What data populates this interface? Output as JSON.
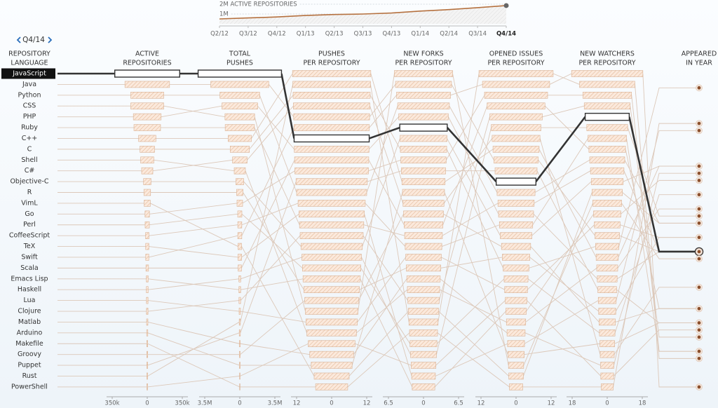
{
  "nav": {
    "quarter": "Q4/14"
  },
  "chart_data": [
    {
      "type": "line",
      "x": [
        "Q2/12",
        "Q3/12",
        "Q4/12",
        "Q1/13",
        "Q2/13",
        "Q3/13",
        "Q4/13",
        "Q1/14",
        "Q2/14",
        "Q3/14",
        "Q4/14"
      ],
      "values": [
        500000,
        600000,
        700000,
        850000,
        950000,
        1000000,
        1100000,
        1300000,
        1450000,
        1650000,
        1860000
      ],
      "ylim": [
        0,
        2000000
      ],
      "yticks": [
        {
          "value": 1000000,
          "label": "1M"
        },
        {
          "value": 2000000,
          "label": "2M ACTIVE REPOSITORIES"
        }
      ],
      "color": "#b5713f"
    },
    {
      "type": "parallel",
      "categories_title": [
        "REPOSITORY",
        "LANGUAGE"
      ],
      "categories": [
        "JavaScript",
        "Java",
        "Python",
        "CSS",
        "PHP",
        "Ruby",
        "C++",
        "C",
        "Shell",
        "C#",
        "Objective-C",
        "R",
        "VimL",
        "Go",
        "Perl",
        "CoffeeScript",
        "TeX",
        "Swift",
        "Scala",
        "Emacs Lisp",
        "Haskell",
        "Lua",
        "Clojure",
        "Matlab",
        "Arduino",
        "Makefile",
        "Groovy",
        "Puppet",
        "Rust",
        "PowerShell"
      ],
      "highlight": 0,
      "series": [
        {
          "name": [
            "ACTIVE",
            "REPOSITORIES"
          ],
          "type": "bar",
          "values": [
            323938,
            222852,
            164852,
            164585,
            138771,
            132848,
            86505,
            73075,
            65670,
            56062,
            37054,
            33324,
            30539,
            22264,
            21305,
            17124,
            15752,
            15409,
            12999,
            8957,
            8789,
            7964,
            7704,
            6735,
            5732,
            4938,
            4785,
            4601,
            4464,
            3931
          ],
          "xlim": [
            0,
            350000
          ],
          "xticks": [
            {
              "value": 350000,
              "label": "350k"
            },
            0,
            {
              "value": 350000,
              "label": "350k"
            }
          ]
        },
        {
          "name": [
            "TOTAL",
            "PUSHES"
          ],
          "type": "bar",
          "values": [
            4160000,
            2900000,
            1980000,
            1480000,
            1780000,
            1460000,
            1160000,
            960000,
            560000,
            730000,
            390000,
            320000,
            180000,
            280000,
            210000,
            200000,
            180000,
            200000,
            165000,
            88000,
            90000,
            70000,
            83000,
            50000,
            40000,
            27000,
            44000,
            56000,
            59000,
            31000
          ],
          "xlim": [
            0,
            3500000
          ],
          "xticks": [
            {
              "value": 3500000,
              "label": "3.5M"
            },
            0,
            {
              "value": 3500000,
              "label": "3.5M"
            }
          ]
        },
        {
          "name": [
            "PUSHES",
            "PER REPOSITORY"
          ],
          "type": "bar",
          "values": [
            12.85,
            13.0,
            12.0,
            9.0,
            12.8,
            11.0,
            13.4,
            13.2,
            8.5,
            13.1,
            10.5,
            9.5,
            6.0,
            12.6,
            10.0,
            11.5,
            11.2,
            12.9,
            12.7,
            9.8,
            10.2,
            8.8,
            10.8,
            7.5,
            7.0,
            5.5,
            9.2,
            12.2,
            13.3,
            8.0
          ],
          "xlim": [
            0,
            12
          ],
          "xticks": [
            12,
            0,
            12
          ]
        },
        {
          "name": [
            "NEW FORKS",
            "PER REPOSITORY"
          ],
          "type": "bar",
          "values": [
            4.4,
            5.2,
            4.8,
            5.4,
            4.6,
            3.5,
            4.0,
            4.3,
            3.0,
            3.8,
            4.35,
            3.2,
            2.8,
            4.2,
            2.5,
            3.4,
            2.2,
            5.0,
            3.6,
            2.1,
            2.4,
            3.3,
            2.9,
            3.1,
            3.9,
            2.6,
            3.7,
            4.1,
            2.7,
            2.3
          ],
          "xlim": [
            0,
            6.5
          ],
          "xticks": [
            6.5,
            0,
            6.5
          ]
        },
        {
          "name": [
            "OPENED ISSUES",
            "PER REPOSITORY"
          ],
          "type": "bar",
          "values": [
            6.8,
            7.6,
            6.5,
            2.6,
            6.0,
            6.2,
            7.9,
            4.4,
            3.3,
            8.2,
            5.4,
            4.7,
            2.5,
            10.8,
            4.1,
            5.7,
            2.9,
            11.5,
            9.9,
            3.5,
            8.5,
            3.9,
            9.0,
            3.1,
            2.8,
            2.3,
            5.0,
            7.2,
            12.7,
            3.7
          ],
          "xlim": [
            0,
            12
          ],
          "xticks": [
            12,
            0,
            12
          ]
        },
        {
          "name": [
            "NEW WATCHERS",
            "PER REPOSITORY"
          ],
          "type": "bar",
          "values": [
            11.3,
            6.3,
            9.0,
            7.4,
            5.1,
            8.6,
            5.7,
            6.0,
            5.4,
            3.6,
            8.2,
            4.4,
            7.8,
            12.5,
            4.0,
            9.9,
            4.6,
            18.3,
            9.4,
            7.0,
            10.5,
            6.6,
            11.8,
            3.4,
            3.8,
            3.1,
            4.2,
            4.8,
            14.2,
            3.3
          ],
          "xlim": [
            0,
            18
          ],
          "xticks": [
            18,
            0,
            18
          ]
        },
        {
          "name": [
            "APPEARED",
            "IN YEAR"
          ],
          "type": "dot",
          "values": [
            1995,
            1995,
            1991,
            1996,
            1995,
            1995,
            1983,
            1972,
            1989,
            2000,
            1983,
            1993,
            1991,
            2009,
            1987,
            2009,
            1978,
            2014,
            2003,
            1985,
            1990,
            1993,
            2007,
            1984,
            2005,
            1977,
            2003,
            2005,
            2010,
            2006
          ],
          "ylim": [
            1970,
            2014
          ]
        }
      ]
    }
  ]
}
